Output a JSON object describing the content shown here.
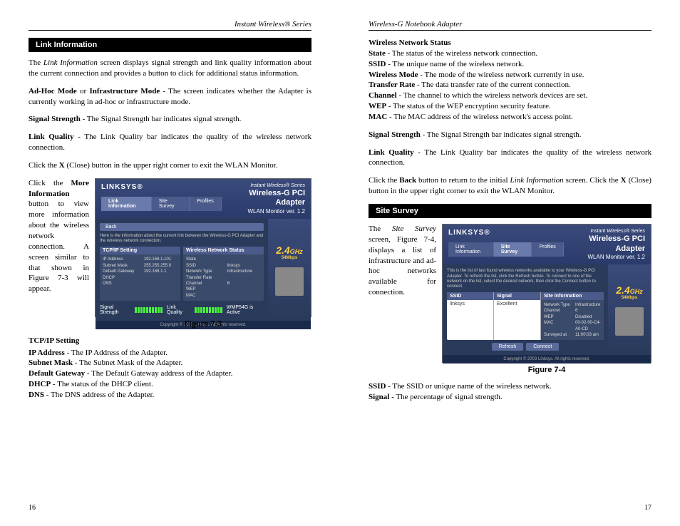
{
  "left": {
    "series": "Instant Wireless® Series",
    "section_link_info": "Link Information",
    "intro_1": "The ",
    "intro_italic": "Link Information",
    "intro_2": " screen displays signal strength and link quality information about the current connection and provides a button to click for additional status information.",
    "adhoc_b1": "Ad-Hoc Mode",
    "adhoc_or": " or ",
    "adhoc_b2": "Infrastructure Mode",
    "adhoc_rest": " - The screen indicates whether the Adapter is currently working in ad-hoc or infrastructure mode.",
    "sig_b": "Signal Strength",
    "sig_rest": " - The Signal Strength bar indicates signal strength.",
    "lq_b": "Link Quality",
    "lq_rest": " - The Link Quality bar indicates the quality of the wireless network connection.",
    "close_1": "Click the ",
    "close_b": "X",
    "close_2": " (Close) button in the upper right corner to exit the WLAN Monitor.",
    "more_1": "Click the ",
    "more_b1": "More Information",
    "more_2": " button to view more information about the wireless network connection. A screen similar to that shown in Figure 7-3 will appear.",
    "fig73": "Figure 7-3",
    "tcpip_header": "TCP/IP Setting",
    "ip_b": "IP Address",
    "ip_r": " - The IP Address of the Adapter.",
    "sm_b": "Subnet Mask",
    "sm_r": " - The Subnet Mask of the Adapter.",
    "dg_b": "Default Gateway",
    "dg_r": " - The Default Gateway address of the Adapter.",
    "dhcp_b": "DHCP",
    "dhcp_r": " - The status of the DHCP client.",
    "dns_b": "DNS",
    "dns_r": " - The DNS address of the Adapter.",
    "page_num": "16"
  },
  "right": {
    "series": "Wireless-G Notebook Adapter",
    "wns_header": "Wireless Network Status",
    "state_b": "State",
    "state_r": " - The status of the wireless network connection.",
    "ssid_b": "SSID",
    "ssid_r": " - The unique name of the wireless network.",
    "wm_b": "Wireless Mode",
    "wm_r": " - The mode of the wireless network currently in use.",
    "tr_b": "Transfer Rate",
    "tr_r": " - The data transfer rate of the current connection.",
    "ch_b": "Channel",
    "ch_r": " - The channel to which the wireless network devices are set.",
    "wep_b": "WEP",
    "wep_r": " - The status of the WEP encryption security feature.",
    "mac_b": "MAC",
    "mac_r": " - The MAC address of the wireless network's access point.",
    "sig_b": "Signal Strength",
    "sig_r": " - The Signal Strength bar indicates signal strength.",
    "lq_b": "Link Quality",
    "lq_r": " - The Link Quality bar indicates the quality of the wireless network connection.",
    "back_1": "Click the ",
    "back_b": "Back",
    "back_2": " button to return to the initial ",
    "back_i": "Link Information",
    "back_3": " screen. Click the ",
    "back_b2": "X",
    "back_4": " (Close) button in the upper right corner to exit the WLAN Monitor.",
    "section_site": "Site Survey",
    "site_1": "The ",
    "site_i": "Site Survey",
    "site_2": " screen, Figure 7-4, displays a list of infrastructure and ad-hoc networks available for connection.",
    "fig74": "Figure 7-4",
    "ssid2_b": "SSID",
    "ssid2_r": " - The SSID or unique name of the wireless network.",
    "signal_b": "Signal",
    "signal_r": " - The percentage of signal strength.",
    "page_num": "17"
  },
  "screenshot": {
    "logo": "LINKSYS®",
    "series_small": "Instant Wireless® Series",
    "product": "Wireless-G PCI Adapter",
    "monitor": "WLAN Monitor",
    "ver": "ver. 1.2",
    "tab_link": "Link Information",
    "tab_site": "Site Survey",
    "tab_prof": "Profiles",
    "back": "Back",
    "desc_link": "Here is the information about the current link between the Wireless-G PCI Adapter and the wireless network connection.",
    "col_tcpip": "TCP/IP Setting",
    "col_wns": "Wireless Network Status",
    "tcpip_rows": [
      [
        "IP Address",
        "192.168.1.101"
      ],
      [
        "Subnet Mask",
        "255.255.255.0"
      ],
      [
        "Default Gateway",
        "192.168.1.1"
      ],
      [
        "DHCP",
        ""
      ],
      [
        "DNS",
        ""
      ]
    ],
    "wns_rows": [
      [
        "State",
        ""
      ],
      [
        "SSID",
        "linksys"
      ],
      [
        "Network Type",
        "Infrastructure"
      ],
      [
        "Transfer Rate",
        ""
      ],
      [
        "Channel",
        "6"
      ],
      [
        "WEP",
        ""
      ],
      [
        "MAC",
        ""
      ]
    ],
    "sig_label": "Signal Strength",
    "lq_label": "Link Quality",
    "status": "WMP54G is Active",
    "ghz": "2.4",
    "ghz_unit": "GHz",
    "ghz_sub": "54Mbps",
    "footer": "Copyright © 2003 Linksys. All rights reserved.",
    "desc_site": "This is the list of last found wireless networks available to your Wireless-G PCI Adapter. To refresh the list, click the Refresh button. To connect to one of the network on the list, select the desired network, then click the Connect button to connect.",
    "list_ssid": "SSID",
    "list_signal": "Signal",
    "list_row1_ssid": "linksys",
    "list_row1_signal": "Excellent",
    "info_header": "Site Information",
    "info_rows": [
      [
        "Network Type",
        "Infrastructure"
      ],
      [
        "Channel",
        "6"
      ],
      [
        "WEP",
        "Disabled"
      ],
      [
        "MAC",
        "00-02-00-C4-A0-CD"
      ],
      [
        "Surveyed at",
        "11:00:03 am"
      ]
    ],
    "btn_refresh": "Refresh",
    "btn_connect": "Connect"
  },
  "colors": {
    "section_bg": "#000000",
    "section_fg": "#ffffff",
    "ss_bg": "#1a2a4a",
    "ss_accent": "#4a5a8a",
    "bar_green": "#4af040",
    "ghz_color": "#ffd040"
  }
}
